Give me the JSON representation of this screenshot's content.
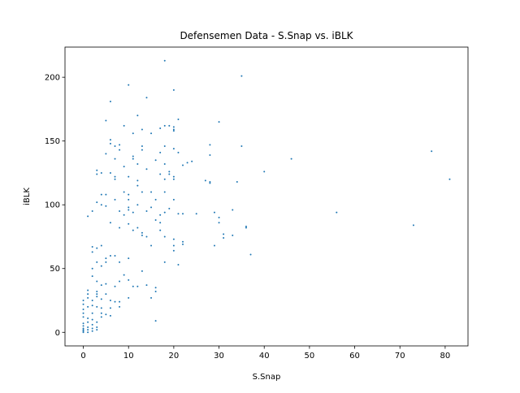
{
  "chart_data": {
    "type": "scatter",
    "title": "Defensemen Data - S.Snap vs. iBLK",
    "x_label": "S.Snap",
    "y_label": "iBLK",
    "color": "#1f77b4",
    "x": [
      18,
      35,
      10,
      20,
      14,
      6,
      12,
      5,
      21,
      30,
      9,
      13,
      17,
      18,
      19,
      20,
      20,
      11,
      15,
      20,
      6,
      7,
      8,
      13,
      13,
      8,
      18,
      20,
      21,
      28,
      35,
      17,
      28,
      6,
      5,
      7,
      11,
      11,
      16,
      18,
      22,
      23,
      24,
      46,
      77,
      3,
      3,
      4,
      6,
      9,
      12,
      14,
      7,
      7,
      10,
      12,
      12,
      17,
      18,
      19,
      19,
      20,
      20,
      27,
      28,
      28,
      34,
      40,
      81,
      5,
      4,
      3,
      4,
      5,
      2,
      1,
      7,
      9,
      10,
      10,
      10,
      13,
      15,
      16,
      18,
      20,
      12,
      8,
      9,
      10,
      11,
      14,
      15,
      17,
      18,
      19,
      21,
      22,
      25,
      29,
      30,
      30,
      33,
      36,
      36,
      56,
      73,
      6,
      8,
      10,
      11,
      12,
      13,
      13,
      14,
      16,
      17,
      17,
      18,
      20,
      22,
      22,
      29,
      31,
      31,
      33,
      37,
      15,
      20,
      20,
      21,
      18,
      4,
      3,
      2,
      2,
      3,
      2,
      4,
      5,
      6,
      5,
      7,
      8,
      10,
      13,
      9,
      2,
      3,
      4,
      5,
      7,
      8,
      10,
      11,
      12,
      14,
      16,
      16,
      15,
      16,
      1,
      1,
      1,
      2,
      3,
      3,
      3,
      5,
      4,
      6,
      7,
      8,
      10,
      0,
      0,
      0,
      1,
      2,
      3,
      4,
      6,
      8,
      0,
      0,
      1,
      2,
      1,
      0,
      0,
      0,
      0,
      0,
      0,
      1,
      1,
      1,
      2,
      2,
      3,
      3,
      2,
      3,
      4,
      5,
      6,
      4,
      2
    ],
    "values": [
      213,
      201,
      194,
      190,
      184,
      181,
      170,
      166,
      167,
      165,
      162,
      159,
      160,
      162,
      162,
      161,
      159,
      156,
      156,
      158,
      151,
      146,
      147,
      146,
      143,
      143,
      146,
      144,
      141,
      147,
      146,
      141,
      139,
      148,
      140,
      136,
      138,
      136,
      135,
      132,
      131,
      133,
      134,
      136,
      142,
      127,
      124,
      125,
      125,
      130,
      132,
      128,
      122,
      120,
      122,
      119,
      115,
      124,
      120,
      126,
      124,
      122,
      120,
      119,
      117,
      118,
      118,
      126,
      120,
      108,
      108,
      102,
      100,
      99,
      95,
      91,
      104,
      110,
      108,
      104,
      98,
      110,
      110,
      104,
      110,
      104,
      100,
      95,
      92,
      96,
      94,
      95,
      98,
      92,
      94,
      97,
      93,
      93,
      93,
      94,
      90,
      86,
      96,
      83,
      82,
      94,
      84,
      86,
      82,
      85,
      80,
      82,
      78,
      76,
      75,
      88,
      86,
      80,
      75,
      73,
      71,
      69,
      68,
      77,
      74,
      76,
      61,
      68,
      68,
      64,
      53,
      55,
      68,
      66,
      67,
      63,
      55,
      50,
      52,
      58,
      60,
      55,
      60,
      55,
      58,
      48,
      45,
      44,
      40,
      37,
      38,
      36,
      40,
      41,
      36,
      36,
      37,
      35,
      32,
      27,
      9,
      33,
      30,
      27,
      25,
      32,
      30,
      28,
      30,
      26,
      25,
      24,
      24,
      27,
      25,
      22,
      18,
      20,
      21,
      20,
      19,
      19,
      20,
      15,
      12,
      11,
      10,
      8,
      7,
      5,
      3,
      2,
      1,
      0,
      0,
      2,
      4,
      3,
      1,
      2,
      4,
      6,
      8,
      12,
      14,
      13,
      15,
      15
    ],
    "xlim": [
      -4.05,
      85.05
    ],
    "ylim": [
      -10.65,
      223.65
    ],
    "xticks": [
      0,
      10,
      20,
      30,
      40,
      50,
      60,
      70,
      80
    ],
    "yticks": [
      0,
      50,
      100,
      150,
      200
    ]
  }
}
